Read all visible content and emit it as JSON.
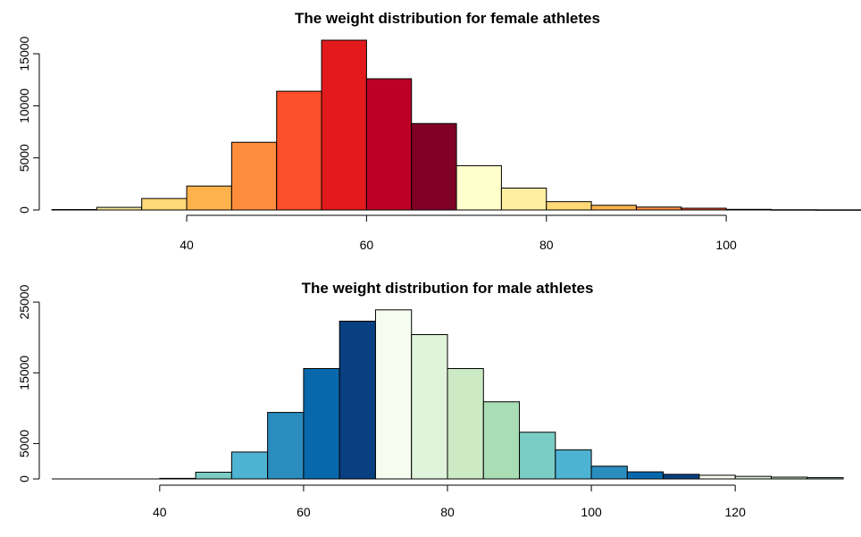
{
  "chart_data": [
    {
      "type": "bar",
      "title": "The weight distribution for female athletes",
      "xlabel": "",
      "ylabel": "",
      "bin_width": 5,
      "bin_starts": [
        25,
        30,
        35,
        40,
        45,
        50,
        55,
        60,
        65,
        70,
        75,
        80,
        85,
        90,
        95,
        100,
        105,
        110
      ],
      "values": [
        40,
        250,
        1100,
        2300,
        6500,
        11400,
        16300,
        12600,
        8300,
        4250,
        2100,
        800,
        450,
        280,
        170,
        60,
        25,
        15
      ],
      "colors": [
        "#FFFFCC",
        "#FFEDA0",
        "#FED976",
        "#FEB24C",
        "#FD8D3C",
        "#FC4E2A",
        "#E31A1C",
        "#BD0026",
        "#800026",
        "#FFFFCC",
        "#FFEDA0",
        "#FED976",
        "#FEB24C",
        "#FD8D3C",
        "#FC4E2A",
        "#E31A1C",
        "#BD0026",
        "#800026"
      ],
      "xlim": [
        25,
        113
      ],
      "ylim": [
        0,
        16300
      ],
      "xticks": [
        40,
        60,
        80,
        100
      ],
      "yticks": [
        0,
        5000,
        10000,
        15000
      ],
      "xtick_labels": [
        "40",
        "60",
        "80",
        "100"
      ],
      "ytick_labels": [
        "0",
        "5000",
        "10000",
        "15000"
      ]
    },
    {
      "type": "bar",
      "title": "The weight distribution for male athletes",
      "xlabel": "",
      "ylabel": "",
      "bin_width": 5,
      "bin_starts": [
        25,
        30,
        35,
        40,
        45,
        50,
        55,
        60,
        65,
        70,
        75,
        80,
        85,
        90,
        95,
        100,
        105,
        110,
        115,
        120,
        125,
        130
      ],
      "values": [
        0,
        0,
        0,
        80,
        950,
        3800,
        9400,
        15600,
        22300,
        23900,
        20400,
        15600,
        10900,
        6600,
        4100,
        1800,
        1000,
        650,
        520,
        360,
        250,
        180
      ],
      "colors": [
        "#F7FCF0",
        "#E0F3DB",
        "#CCEBC5",
        "#A8DDB5",
        "#7BCCC4",
        "#4EB3D3",
        "#2B8CBE",
        "#0868AC",
        "#084081",
        "#F7FCF0",
        "#E0F3DB",
        "#CCEBC5",
        "#A8DDB5",
        "#7BCCC4",
        "#4EB3D3",
        "#2B8CBE",
        "#0868AC",
        "#084081",
        "#F7FCF0",
        "#E0F3DB",
        "#CCEBC5",
        "#A8DDB5"
      ],
      "xlim": [
        25,
        135
      ],
      "ylim": [
        0,
        24000
      ],
      "xticks": [
        40,
        60,
        80,
        100,
        120
      ],
      "yticks": [
        0,
        5000,
        15000,
        25000
      ],
      "xtick_labels": [
        "40",
        "60",
        "80",
        "100",
        "120"
      ],
      "ytick_labels": [
        "0",
        "5000",
        "15000",
        "25000"
      ]
    }
  ]
}
